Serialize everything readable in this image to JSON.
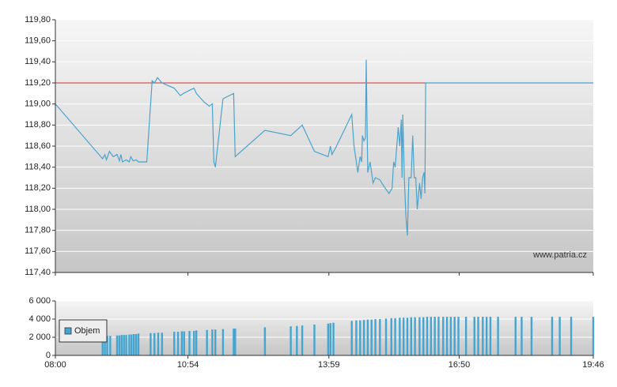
{
  "chart_data": [
    {
      "type": "line",
      "xlim": [
        "08:00",
        "19:46"
      ],
      "ylim": [
        117.4,
        119.8
      ],
      "yticks": [
        {
          "value": 117.4,
          "label": "117,40"
        },
        {
          "value": 117.6,
          "label": "117,60"
        },
        {
          "value": 117.8,
          "label": "117,80"
        },
        {
          "value": 118.0,
          "label": "118,00"
        },
        {
          "value": 118.2,
          "label": "118,20"
        },
        {
          "value": 118.4,
          "label": "118,40"
        },
        {
          "value": 118.6,
          "label": "118,60"
        },
        {
          "value": 118.8,
          "label": "118,80"
        },
        {
          "value": 119.0,
          "label": "119,00"
        },
        {
          "value": 119.2,
          "label": "119,20"
        },
        {
          "value": 119.4,
          "label": "119,40"
        },
        {
          "value": 119.6,
          "label": "119,60"
        },
        {
          "value": 119.8,
          "label": "119,80"
        }
      ],
      "grid": true,
      "reference_line": {
        "value": 119.2,
        "color": "#d03030"
      },
      "watermark": "www.patria.cz",
      "series": [
        {
          "color": "#4aa3cc",
          "x": [
            "08:00",
            "09:02",
            "09:05",
            "09:07",
            "09:11",
            "09:16",
            "09:21",
            "09:24",
            "09:26",
            "09:28",
            "09:33",
            "09:37",
            "09:39",
            "09:42",
            "09:46",
            "09:49",
            "10:00",
            "10:07",
            "10:10",
            "10:14",
            "10:20",
            "10:36",
            "10:44",
            "10:48",
            "10:56",
            "11:02",
            "11:05",
            "11:15",
            "11:22",
            "11:26",
            "11:28",
            "11:30",
            "11:40",
            "11:54",
            "11:56",
            "12:35",
            "13:09",
            "13:24",
            "13:40",
            "13:58",
            "14:01",
            "14:03",
            "14:09",
            "14:29",
            "14:32",
            "14:35",
            "14:37",
            "14:40",
            "14:42",
            "14:43",
            "14:45",
            "14:47",
            "14:48",
            "14:50",
            "14:53",
            "14:57",
            "15:00",
            "15:06",
            "15:11",
            "15:18",
            "15:22",
            "15:24",
            "15:26",
            "15:30",
            "15:32",
            "15:34",
            "15:35",
            "15:36",
            "15:38",
            "15:40",
            "15:42",
            "15:44",
            "15:47",
            "15:49",
            "15:51",
            "15:53",
            "15:55",
            "15:58",
            "16:00",
            "16:02",
            "16:04",
            "16:05",
            "16:06",
            "19:46"
          ],
          "values": [
            119.0,
            118.48,
            118.52,
            118.47,
            118.55,
            118.5,
            118.52,
            118.46,
            118.52,
            118.45,
            118.47,
            118.45,
            118.5,
            118.46,
            118.47,
            118.45,
            118.45,
            119.22,
            119.2,
            119.25,
            119.2,
            119.15,
            119.08,
            119.1,
            119.13,
            119.15,
            119.1,
            119.02,
            118.98,
            119.0,
            118.45,
            118.4,
            119.05,
            119.1,
            118.5,
            118.75,
            118.7,
            118.8,
            118.55,
            118.5,
            118.6,
            118.52,
            118.6,
            118.9,
            118.6,
            118.45,
            118.35,
            118.5,
            118.45,
            118.7,
            118.65,
            118.68,
            119.42,
            118.35,
            118.45,
            118.25,
            118.3,
            118.28,
            118.22,
            118.15,
            118.2,
            118.45,
            118.4,
            118.78,
            118.6,
            118.85,
            118.3,
            118.9,
            118.3,
            117.95,
            117.75,
            118.3,
            118.3,
            118.7,
            118.3,
            118.3,
            118.0,
            118.25,
            118.1,
            118.3,
            118.35,
            118.15,
            119.2,
            119.2
          ]
        }
      ]
    },
    {
      "type": "bar",
      "xlim": [
        "08:00",
        "19:46"
      ],
      "xticks": [
        "08:00",
        "10:54",
        "13:59",
        "16:50",
        "19:46"
      ],
      "ylim": [
        0,
        6000
      ],
      "yticks": [
        0,
        {
          "value": 2000,
          "label": "2 000"
        },
        {
          "value": 4000,
          "label": "4 000"
        },
        {
          "value": 6000,
          "label": "6 000"
        }
      ],
      "grid": true,
      "legend": "top-left",
      "series": [
        {
          "name": "Objem",
          "color": "#45a5d0",
          "x": [
            "09:02",
            "09:05",
            "09:08",
            "09:12",
            "09:21",
            "09:24",
            "09:27",
            "09:30",
            "09:33",
            "09:37",
            "09:40",
            "09:43",
            "09:46",
            "09:49",
            "10:05",
            "10:10",
            "10:15",
            "10:20",
            "10:36",
            "10:41",
            "10:46",
            "10:49",
            "10:56",
            "11:02",
            "11:05",
            "11:19",
            "11:26",
            "11:30",
            "11:40",
            "11:54",
            "11:56",
            "12:35",
            "13:09",
            "13:17",
            "13:24",
            "13:40",
            "13:58",
            "14:01",
            "14:05",
            "14:29",
            "14:35",
            "14:40",
            "14:45",
            "14:50",
            "14:55",
            "15:00",
            "15:06",
            "15:14",
            "15:21",
            "15:26",
            "15:32",
            "15:37",
            "15:42",
            "15:47",
            "15:52",
            "15:58",
            "16:03",
            "16:08",
            "16:13",
            "16:18",
            "16:23",
            "16:29",
            "16:34",
            "16:39",
            "16:44",
            "16:49",
            "16:59",
            "17:10",
            "17:15",
            "17:21",
            "17:26",
            "17:31",
            "17:41",
            "18:04",
            "18:12",
            "18:25",
            "18:52",
            "19:02",
            "19:17",
            "19:46"
          ],
          "values": [
            2100,
            2100,
            2150,
            2150,
            2200,
            2200,
            2250,
            2250,
            2250,
            2300,
            2300,
            2350,
            2350,
            2400,
            2450,
            2450,
            2500,
            2500,
            2600,
            2600,
            2650,
            2650,
            2700,
            2700,
            2750,
            2800,
            2850,
            2850,
            2900,
            2950,
            2950,
            3100,
            3200,
            3250,
            3300,
            3400,
            3500,
            3550,
            3600,
            3800,
            3850,
            3850,
            3900,
            3950,
            3950,
            4000,
            4000,
            4050,
            4100,
            4100,
            4150,
            4150,
            4150,
            4200,
            4200,
            4200,
            4200,
            4250,
            4250,
            4250,
            4250,
            4250,
            4250,
            4250,
            4250,
            4250,
            4250,
            4250,
            4250,
            4250,
            4250,
            4250,
            4250,
            4250,
            4250,
            4250,
            4250,
            4250,
            4250,
            4250
          ]
        }
      ]
    }
  ]
}
